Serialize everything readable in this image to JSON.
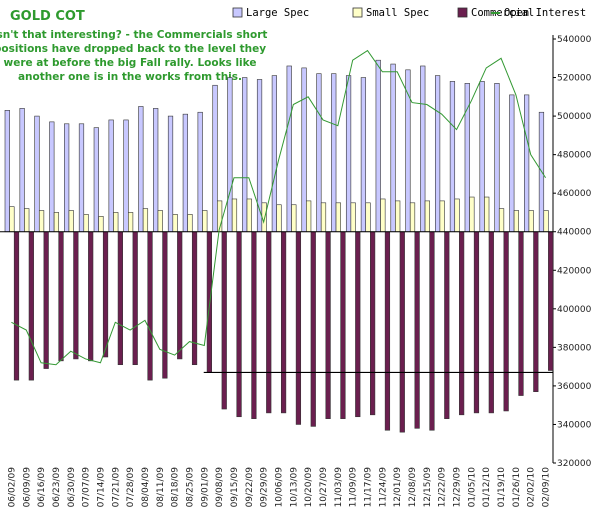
{
  "chart_data": {
    "type": "bar_line",
    "title": "GOLD COT",
    "annotation": [
      "Isn't that interesting? - the Commercials short",
      "positions have dropped back to the level they",
      "were at before the big Fall rally. Looks like",
      "another one is in the works from this."
    ],
    "categories": [
      "06/02/09",
      "06/09/09",
      "06/16/09",
      "06/23/09",
      "06/30/09",
      "07/07/09",
      "07/14/09",
      "07/21/09",
      "07/28/09",
      "08/04/09",
      "08/11/09",
      "08/18/09",
      "08/25/09",
      "09/01/09",
      "09/08/09",
      "09/15/09",
      "09/22/09",
      "09/29/09",
      "10/06/09",
      "10/13/09",
      "10/20/09",
      "10/27/09",
      "11/03/09",
      "11/09/09",
      "11/17/09",
      "11/24/09",
      "12/01/09",
      "12/08/09",
      "12/15/09",
      "12/22/09",
      "12/29/09",
      "01/05/10",
      "01/12/10",
      "01/19/10",
      "01/26/10",
      "02/02/10",
      "02/09/10"
    ],
    "series": [
      {
        "name": "Large Spec",
        "color": "#c8c8ff",
        "values": [
          63000,
          64000,
          60000,
          57000,
          56000,
          56000,
          54000,
          58000,
          58000,
          65000,
          64000,
          60000,
          61000,
          62000,
          76000,
          80000,
          80000,
          79000,
          81000,
          86000,
          85000,
          82000,
          82000,
          81000,
          80000,
          89000,
          87000,
          84000,
          86000,
          81000,
          78000,
          77000,
          78000,
          77000,
          71000,
          71000,
          62000
        ]
      },
      {
        "name": "Small Spec",
        "color": "#ffffc8",
        "values": [
          13000,
          12000,
          11000,
          10000,
          11000,
          9000,
          8000,
          10000,
          10000,
          12000,
          11000,
          9000,
          9000,
          11000,
          16000,
          17000,
          17000,
          15000,
          14000,
          14000,
          16000,
          15000,
          15000,
          15000,
          15000,
          17000,
          16000,
          15000,
          16000,
          16000,
          17000,
          18000,
          18000,
          12000,
          11000,
          11000,
          11000
        ]
      },
      {
        "name": "Commercial",
        "color": "#6b1f4f",
        "values": [
          -77000,
          -77000,
          -71000,
          -67000,
          -66000,
          -67000,
          -65000,
          -69000,
          -69000,
          -77000,
          -76000,
          -66000,
          -69000,
          -73000,
          -92000,
          -96000,
          -97000,
          -94000,
          -94000,
          -100000,
          -101000,
          -97000,
          -97000,
          -96000,
          -95000,
          -103000,
          -104000,
          -102000,
          -103000,
          -97000,
          -95000,
          -94000,
          -94000,
          -93000,
          -85000,
          -83000,
          -72000
        ]
      },
      {
        "name": "Open Interest",
        "color": "#339933",
        "axis": "y2",
        "type": "line",
        "values": [
          393000,
          389000,
          372000,
          371000,
          378000,
          374000,
          372000,
          393000,
          389000,
          394000,
          379000,
          376000,
          383000,
          381000,
          441000,
          468000,
          468000,
          445000,
          477000,
          506000,
          510000,
          498000,
          495000,
          529000,
          534000,
          523000,
          523000,
          507000,
          506000,
          501000,
          493000,
          508000,
          525000,
          530000,
          511000,
          480000,
          468000
        ]
      }
    ],
    "ylim": [
      -120000,
      100000
    ],
    "y2lim": [
      320000,
      540000
    ],
    "y2ticks": [
      320000,
      340000,
      360000,
      380000,
      400000,
      420000,
      440000,
      460000,
      480000,
      500000,
      520000,
      540000
    ],
    "reference_line": {
      "value": 367000,
      "from": "09/08/09"
    },
    "legend": "top-right"
  }
}
